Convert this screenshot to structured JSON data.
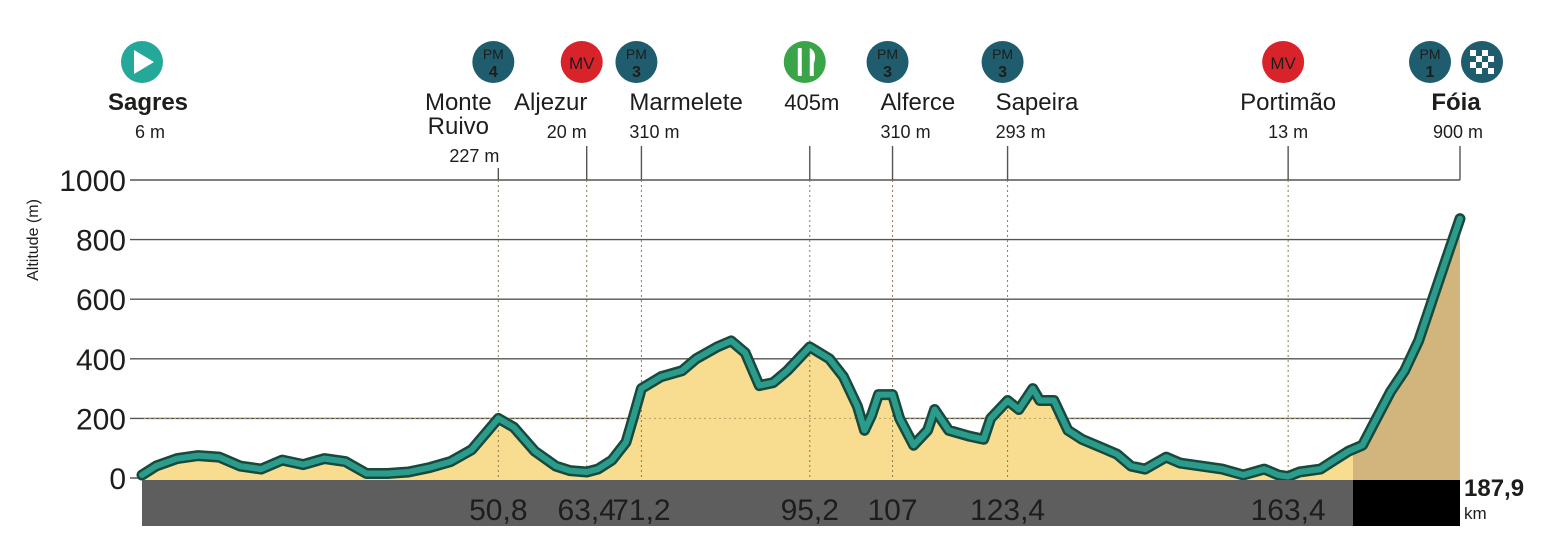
{
  "chart_data": {
    "type": "area",
    "ylabel": "Altitude (m)",
    "ylim": [
      0,
      1000
    ],
    "y_ticks": [
      "0",
      "200",
      "400",
      "600",
      "800",
      "1000"
    ],
    "x_range_km": [
      0,
      187.9
    ],
    "total_distance": "187,9",
    "distance_unit": "km",
    "km_markers": [
      "50,8",
      "63,4",
      "71,2",
      "95,2",
      "107",
      "123,4",
      "163,4"
    ],
    "grid": true,
    "start": {
      "name": "Sagres",
      "altitude": "6 m",
      "icon": "start-arrow-icon"
    },
    "finish": {
      "name": "Fóia",
      "altitude": "900 m",
      "category": "PM",
      "grade": "1",
      "icon": "checkered-flag-icon"
    },
    "waypoints": [
      {
        "km": 50.8,
        "name1": "Monte",
        "name2": "Ruivo",
        "altitude": "227 m",
        "type": "PM",
        "grade": "4"
      },
      {
        "km": 63.4,
        "name1": "Aljezur",
        "name2": "",
        "altitude": "20 m",
        "type": "MV",
        "grade": ""
      },
      {
        "km": 71.2,
        "name1": "Marmelete",
        "name2": "",
        "altitude": "310 m",
        "type": "PM",
        "grade": "3"
      },
      {
        "km": 95.2,
        "name1": "405m",
        "name2": "",
        "altitude": "",
        "type": "FEED",
        "grade": ""
      },
      {
        "km": 107,
        "name1": "Alferce",
        "name2": "",
        "altitude": "310 m",
        "type": "PM",
        "grade": "3"
      },
      {
        "km": 123.4,
        "name1": "Sapeira",
        "name2": "",
        "altitude": "293 m",
        "type": "PM",
        "grade": "3"
      },
      {
        "km": 163.4,
        "name1": "Portimão",
        "name2": "",
        "altitude": "13 m",
        "type": "MV",
        "grade": ""
      }
    ],
    "profile": {
      "x": [
        0,
        2,
        5,
        8,
        11,
        14,
        17,
        20,
        23,
        26,
        29,
        32,
        35,
        38,
        41,
        44,
        47,
        49,
        50.8,
        53,
        56,
        59,
        61,
        63.4,
        65,
        67,
        69,
        70,
        71.2,
        74,
        77,
        79,
        82,
        84,
        86,
        88,
        90,
        92,
        95.2,
        98,
        100,
        102,
        103,
        104,
        105,
        107,
        108,
        110,
        112,
        113,
        115,
        118,
        120,
        121,
        123.4,
        125,
        127,
        128,
        130,
        132,
        134,
        137,
        139,
        141,
        143,
        146,
        148,
        151,
        154,
        157,
        160,
        162,
        163.4,
        165,
        168,
        170,
        172,
        174,
        176,
        178,
        180,
        182,
        184,
        186,
        187.9
      ],
      "y": [
        10,
        40,
        65,
        75,
        70,
        40,
        30,
        60,
        45,
        65,
        55,
        15,
        15,
        20,
        35,
        55,
        95,
        150,
        200,
        170,
        90,
        40,
        25,
        20,
        30,
        60,
        120,
        200,
        300,
        340,
        360,
        400,
        440,
        460,
        420,
        310,
        320,
        360,
        440,
        400,
        340,
        240,
        160,
        210,
        280,
        280,
        200,
        110,
        160,
        230,
        160,
        140,
        130,
        200,
        260,
        230,
        300,
        260,
        260,
        160,
        130,
        100,
        80,
        40,
        30,
        70,
        50,
        40,
        30,
        10,
        30,
        10,
        5,
        20,
        30,
        60,
        90,
        110,
        200,
        290,
        360,
        460,
        600,
        740,
        870
      ]
    }
  },
  "colors": {
    "line": "#2b9c8c",
    "line_outline": "#17493d",
    "fill": "#f8dd91",
    "fill_final": "#d2b57c",
    "pm_badge": "#1f5d6e",
    "mv_badge": "#d9232a",
    "feed_badge": "#3aa548",
    "start_badge": "#24a89a",
    "axis_bar": "#5e5e5e",
    "axis_bar_final": "#000000",
    "grid": "#555555"
  }
}
